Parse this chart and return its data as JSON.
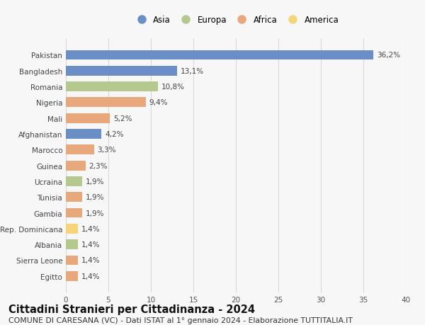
{
  "countries": [
    "Pakistan",
    "Bangladesh",
    "Romania",
    "Nigeria",
    "Mali",
    "Afghanistan",
    "Marocco",
    "Guinea",
    "Ucraina",
    "Tunisia",
    "Gambia",
    "Rep. Dominicana",
    "Albania",
    "Sierra Leone",
    "Egitto"
  ],
  "values": [
    36.2,
    13.1,
    10.8,
    9.4,
    5.2,
    4.2,
    3.3,
    2.3,
    1.9,
    1.9,
    1.9,
    1.4,
    1.4,
    1.4,
    1.4
  ],
  "labels": [
    "36,2%",
    "13,1%",
    "10,8%",
    "9,4%",
    "5,2%",
    "4,2%",
    "3,3%",
    "2,3%",
    "1,9%",
    "1,9%",
    "1,9%",
    "1,4%",
    "1,4%",
    "1,4%",
    "1,4%"
  ],
  "continents": [
    "Asia",
    "Asia",
    "Europa",
    "Africa",
    "Africa",
    "Asia",
    "Africa",
    "Africa",
    "Europa",
    "Africa",
    "Africa",
    "America",
    "Europa",
    "Africa",
    "Africa"
  ],
  "continent_colors": {
    "Asia": "#6b8ec7",
    "Europa": "#b5c98e",
    "Africa": "#e8a87c",
    "America": "#f5d47a"
  },
  "legend_order": [
    "Asia",
    "Europa",
    "Africa",
    "America"
  ],
  "xlim": [
    0,
    40
  ],
  "xticks": [
    0,
    5,
    10,
    15,
    20,
    25,
    30,
    35,
    40
  ],
  "title": "Cittadini Stranieri per Cittadinanza - 2024",
  "subtitle": "COMUNE DI CARESANA (VC) - Dati ISTAT al 1° gennaio 2024 - Elaborazione TUTTITALIA.IT",
  "background_color": "#f7f7f7",
  "grid_color": "#d8d8d8",
  "bar_height": 0.62,
  "label_fontsize": 7.5,
  "title_fontsize": 10.5,
  "subtitle_fontsize": 7.8,
  "tick_fontsize": 7.5,
  "legend_fontsize": 8.5
}
